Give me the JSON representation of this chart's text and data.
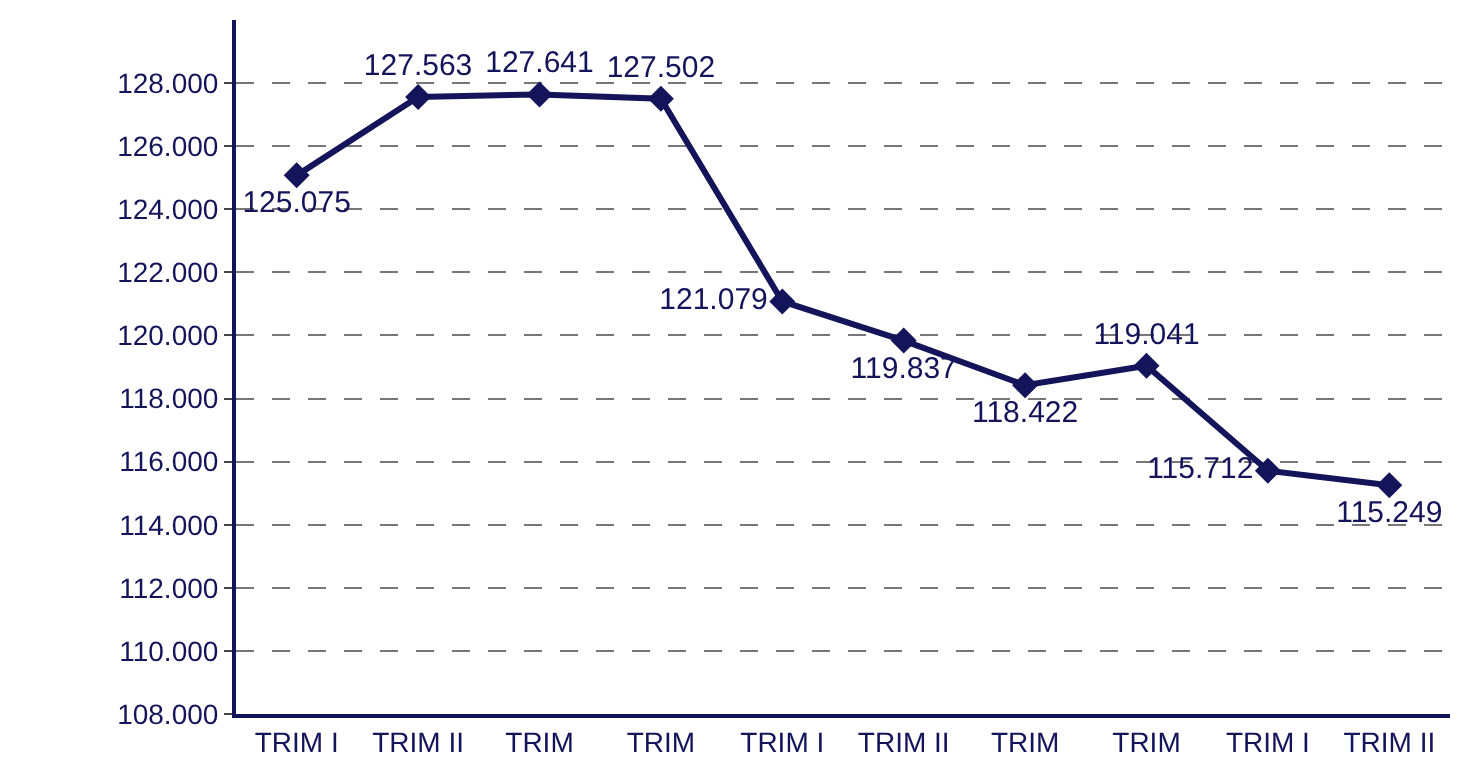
{
  "chart_data": {
    "type": "line",
    "categories": [
      "TRIM I",
      "TRIM II",
      "TRIM",
      "TRIM",
      "TRIM I",
      "TRIM II",
      "TRIM",
      "TRIM",
      "TRIM I",
      "TRIM II"
    ],
    "series": [
      {
        "color": "#14145a",
        "values": [
          125075,
          127563,
          127641,
          127502,
          121079,
          119837,
          118422,
          119041,
          115712,
          115249
        ]
      }
    ],
    "value_labels": [
      "125.075",
      "127.563",
      "127.641",
      "127.502",
      "121.079",
      "119.837",
      "118.422",
      "119.041",
      "115.712",
      "115.249"
    ],
    "ylim": [
      108000,
      130000
    ],
    "yticks": [
      {
        "value": 108000,
        "label": "108.000"
      },
      {
        "value": 110000,
        "label": "110.000"
      },
      {
        "value": 112000,
        "label": "112.000"
      },
      {
        "value": 114000,
        "label": "114.000"
      },
      {
        "value": 116000,
        "label": "116.000"
      },
      {
        "value": 118000,
        "label": "118.000"
      },
      {
        "value": 120000,
        "label": "120.000"
      },
      {
        "value": 122000,
        "label": "122.000"
      },
      {
        "value": 124000,
        "label": "124.000"
      },
      {
        "value": 126000,
        "label": "126.000"
      },
      {
        "value": 128000,
        "label": "128.000"
      }
    ],
    "grid": "y",
    "marker": "diamond",
    "line_style": "solid",
    "legend": false
  }
}
